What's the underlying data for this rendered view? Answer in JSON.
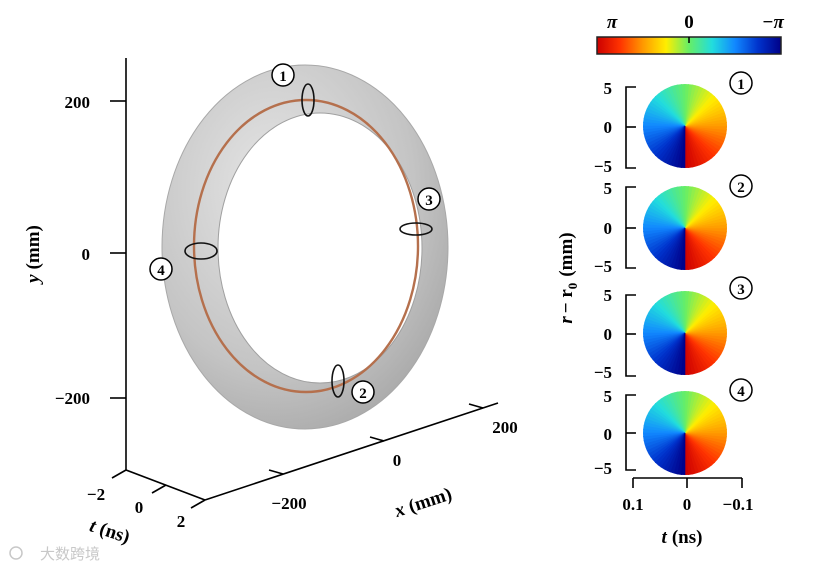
{
  "left_plot": {
    "y_axis": {
      "title_var": "y",
      "title_unit": "(mm)",
      "ticks": [
        "200",
        "0",
        "−200"
      ]
    },
    "x_axis": {
      "title_var": "x",
      "title_unit": "(mm)",
      "ticks": [
        "−200",
        "0",
        "200"
      ]
    },
    "t_axis": {
      "title_var": "t",
      "title_unit": "(ns)",
      "ticks": [
        "−2",
        "0",
        "2"
      ]
    },
    "markers": [
      "1",
      "2",
      "3",
      "4"
    ],
    "colors": {
      "torus": "#c4c4c4",
      "core_line": "#b5704d",
      "axis": "#000000"
    }
  },
  "colorbar": {
    "labels": [
      "π",
      "0",
      "−π"
    ],
    "stops": [
      "#cc0000",
      "#ff3300",
      "#ff9900",
      "#ffee00",
      "#66ee66",
      "#22dddd",
      "#1188ff",
      "#0033cc",
      "#000088"
    ]
  },
  "right_panels": {
    "y_title_var": "r",
    "y_title_rest": "− r",
    "y_title_sub": "0",
    "y_title_unit": "(mm)",
    "y_ticks": [
      "5",
      "0",
      "−5"
    ],
    "x_ticks": [
      "0.1",
      "0",
      "−0.1"
    ],
    "x_title_var": "t",
    "x_title_unit": "(ns)",
    "panels": [
      {
        "marker": "1"
      },
      {
        "marker": "2"
      },
      {
        "marker": "3"
      },
      {
        "marker": "4"
      }
    ]
  },
  "watermark": "大数跨境"
}
